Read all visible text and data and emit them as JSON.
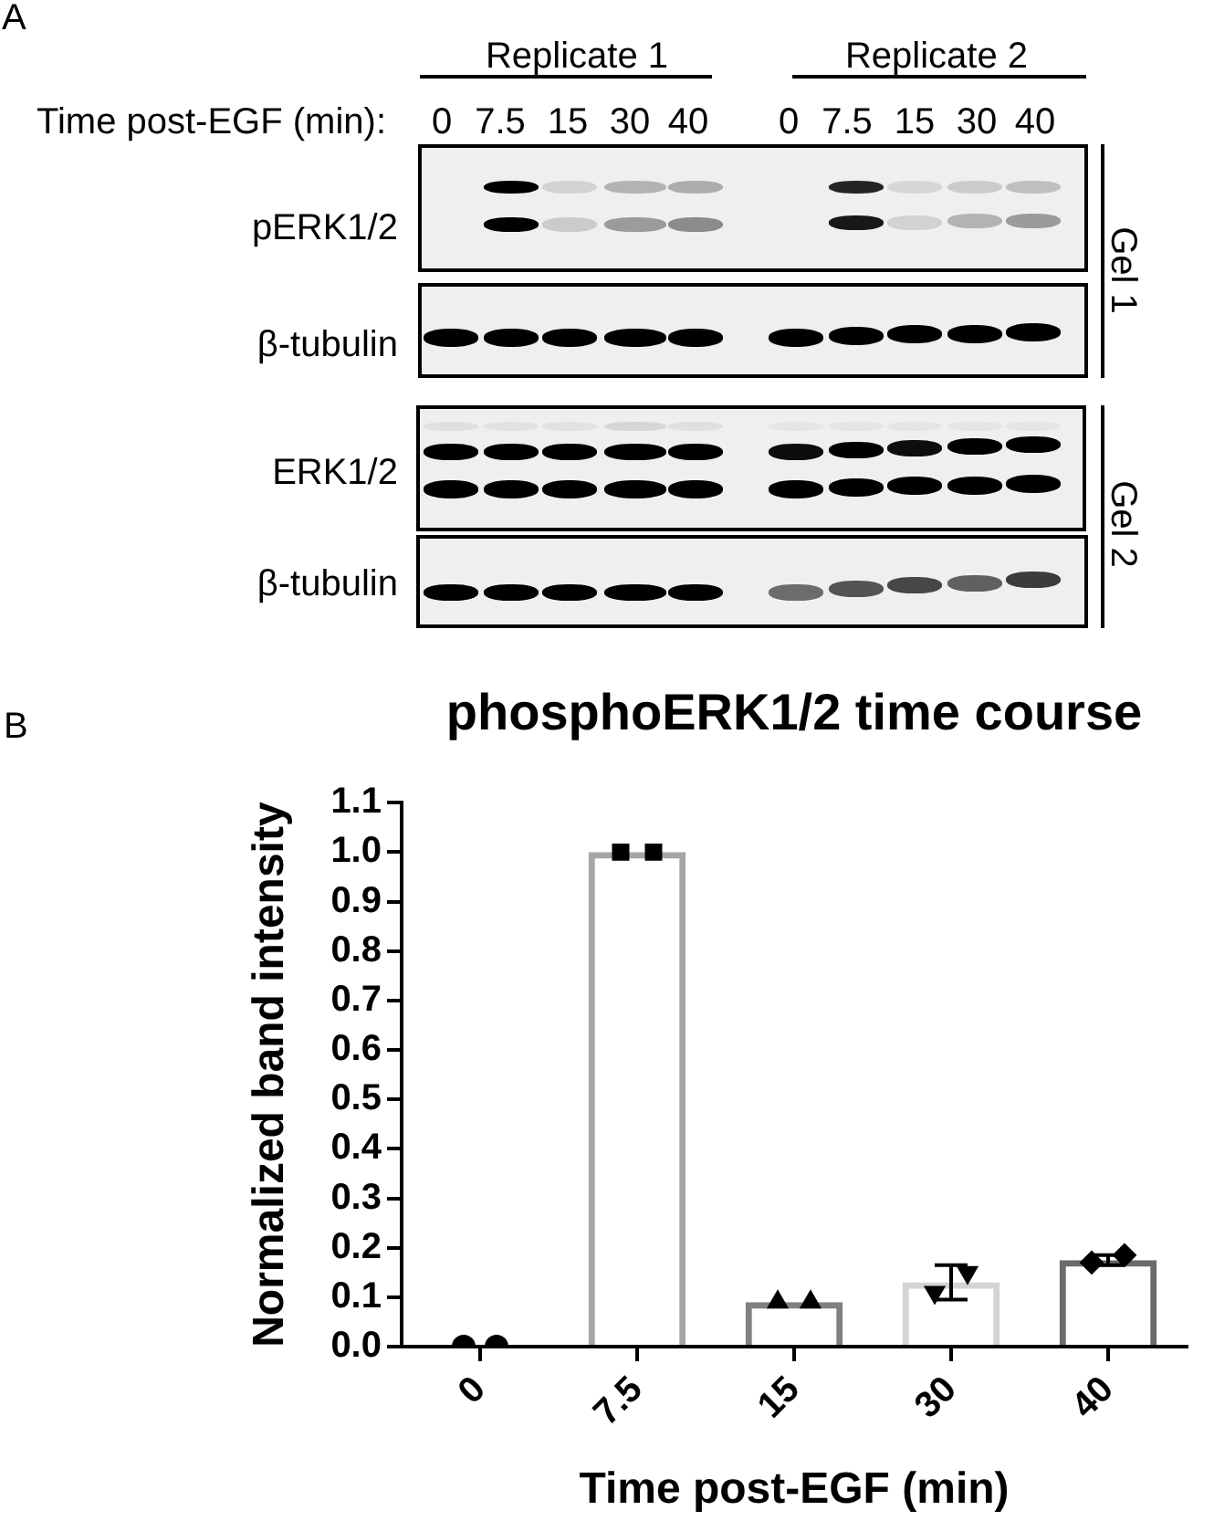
{
  "chart_data": [
    {
      "type": "other",
      "annotations": [
        "A",
        "Replicate 1",
        "Replicate 2",
        "Time post-EGF (min):",
        "0",
        "7.5",
        "15",
        "30",
        "40",
        "0",
        "7.5",
        "15",
        "30",
        "40",
        "pERK1/2",
        "β-tubulin",
        "ERK1/2",
        "β-tubulin",
        "Gel 1",
        "Gel 2"
      ]
    },
    {
      "type": "bar",
      "title": "phosphoERK1/2 time course",
      "xlabel": "Time post-EGF (min)",
      "ylabel": "Normalized band intensity",
      "annotations": [
        "B"
      ],
      "categories": [
        "0",
        "7.5",
        "15",
        "30",
        "40"
      ],
      "ylim": [
        0,
        1.1
      ],
      "yticks": [
        {
          "value": 0,
          "label": "0.0"
        },
        0.1,
        0.2,
        0.3,
        0.4,
        0.5,
        0.6,
        0.7,
        0.8,
        0.9,
        {
          "value": 1,
          "label": "1.0"
        },
        1.1
      ],
      "series": [
        {
          "type": "bar",
          "colors": [
            "#000000",
            "#a6a6a6",
            "#808080",
            "#d4d4d4",
            "#6b6b6b"
          ],
          "values": [
            0,
            1.0,
            0.09,
            0.13,
            0.175
          ],
          "errors": [
            null,
            null,
            null,
            0.035,
            0.01
          ]
        },
        {
          "type": "scatter",
          "x": [
            "0",
            "0"
          ],
          "values": [
            0,
            0
          ],
          "marker": "circle",
          "color": "#000000"
        },
        {
          "type": "scatter",
          "x": [
            "7.5",
            "7.5"
          ],
          "values": [
            1.0,
            1.0
          ],
          "marker": "square",
          "color": "#000000"
        },
        {
          "type": "scatter",
          "x": [
            "15",
            "15"
          ],
          "values": [
            0.09,
            0.09
          ],
          "marker": "triangle",
          "color": "#000000"
        },
        {
          "type": "scatter",
          "x": [
            "30",
            "30"
          ],
          "values": [
            0.11,
            0.15
          ],
          "marker": "triangle-down",
          "color": "#000000"
        },
        {
          "type": "scatter",
          "x": [
            "40",
            "40"
          ],
          "values": [
            0.17,
            0.185
          ],
          "marker": "diamond",
          "color": "#000000"
        }
      ]
    }
  ]
}
